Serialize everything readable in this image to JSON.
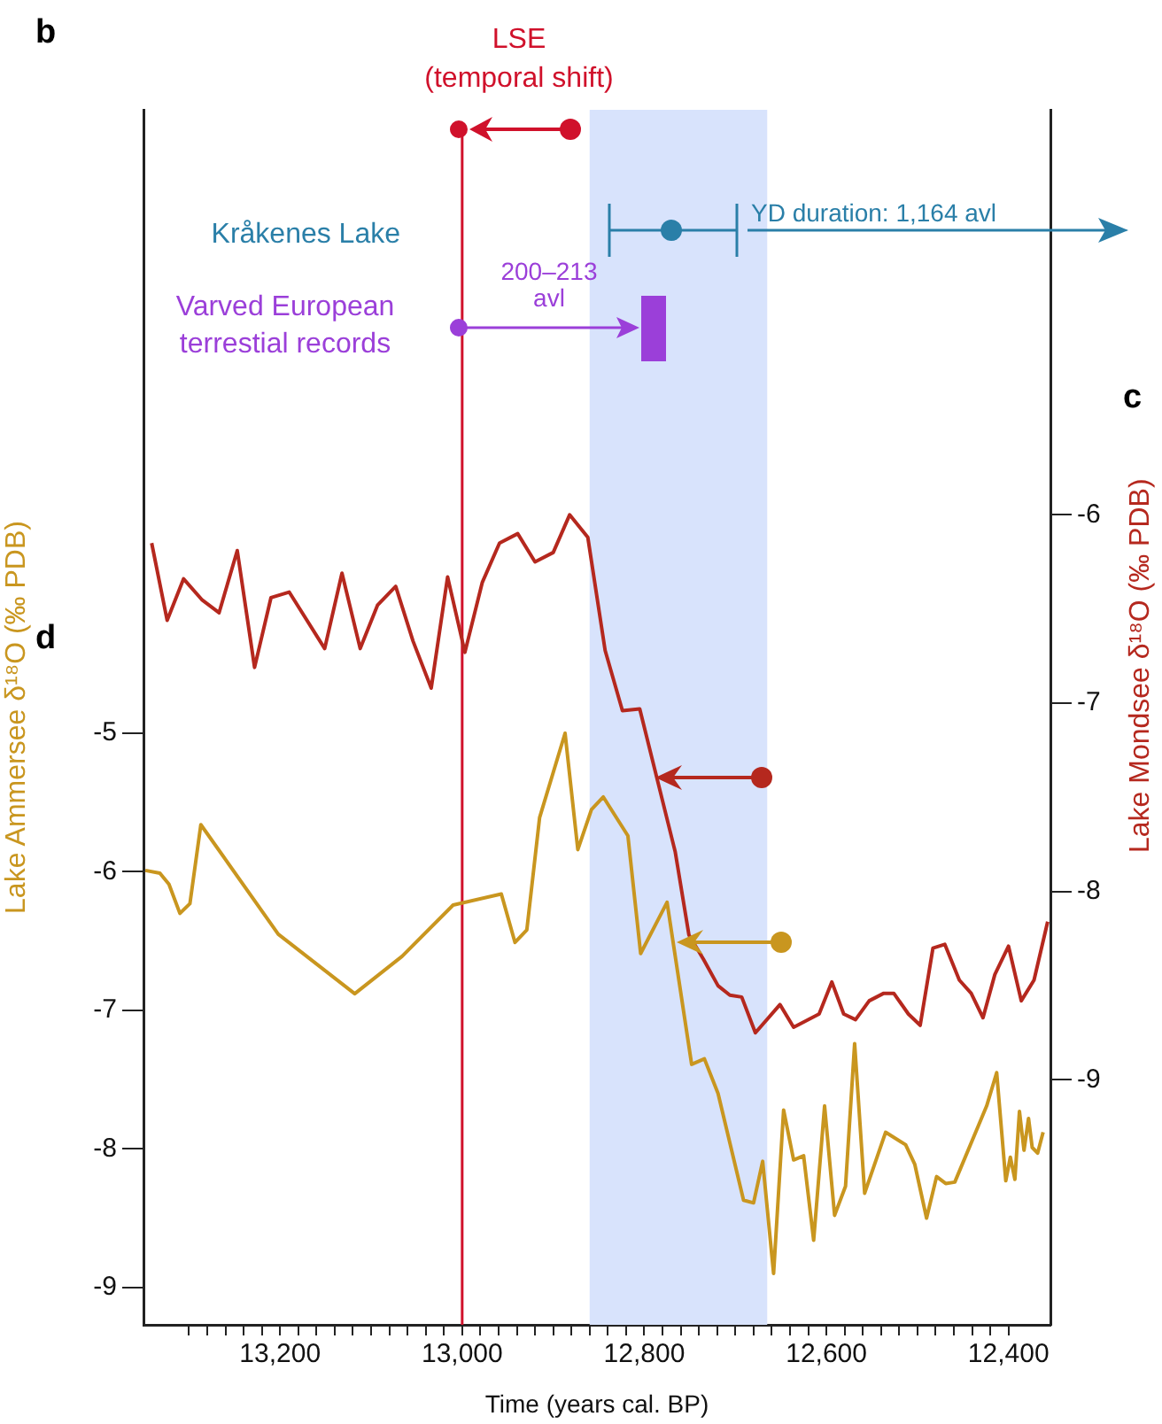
{
  "chart_data": {
    "type": "line",
    "xlabel": "Time (years cal. BP)",
    "ylabel": "Lake Ammersee δ¹⁸O (‰ PDB)",
    "y2label": "Lake Mondsee δ¹⁸O (‰ PDB)",
    "annotations": [
      "b",
      "c",
      "d",
      "LSE\n(temporal shift)",
      "Kråkenes Lake",
      "YD duration: 1,164 avl",
      "Varved European\nterrestial records",
      "200–213\navl"
    ],
    "xlim": [
      13350,
      12354
    ],
    "xticks": [
      {
        "value": 13300,
        "label": null
      },
      {
        "value": 13280,
        "label": null
      },
      {
        "value": 13260,
        "label": null
      },
      {
        "value": 13240,
        "label": null
      },
      {
        "value": 13220,
        "label": null
      },
      {
        "value": 13200,
        "label": "13,200"
      },
      {
        "value": 13180,
        "label": null
      },
      {
        "value": 13160,
        "label": null
      },
      {
        "value": 13140,
        "label": null
      },
      {
        "value": 13120,
        "label": null
      },
      {
        "value": 13100,
        "label": null
      },
      {
        "value": 13080,
        "label": null
      },
      {
        "value": 13060,
        "label": null
      },
      {
        "value": 13040,
        "label": null
      },
      {
        "value": 13020,
        "label": null
      },
      {
        "value": 13000,
        "label": "13,000"
      },
      {
        "value": 12980,
        "label": null
      },
      {
        "value": 12960,
        "label": null
      },
      {
        "value": 12940,
        "label": null
      },
      {
        "value": 12920,
        "label": null
      },
      {
        "value": 12900,
        "label": null
      },
      {
        "value": 12880,
        "label": null
      },
      {
        "value": 12860,
        "label": null
      },
      {
        "value": 12840,
        "label": null
      },
      {
        "value": 12820,
        "label": null
      },
      {
        "value": 12800,
        "label": "12,800"
      },
      {
        "value": 12780,
        "label": null
      },
      {
        "value": 12760,
        "label": null
      },
      {
        "value": 12740,
        "label": null
      },
      {
        "value": 12720,
        "label": null
      },
      {
        "value": 12700,
        "label": null
      },
      {
        "value": 12680,
        "label": null
      },
      {
        "value": 12660,
        "label": null
      },
      {
        "value": 12640,
        "label": null
      },
      {
        "value": 12620,
        "label": null
      },
      {
        "value": 12600,
        "label": "12,600"
      },
      {
        "value": 12580,
        "label": null
      },
      {
        "value": 12560,
        "label": null
      },
      {
        "value": 12540,
        "label": null
      },
      {
        "value": 12520,
        "label": null
      },
      {
        "value": 12500,
        "label": null
      },
      {
        "value": 12480,
        "label": null
      },
      {
        "value": 12460,
        "label": null
      },
      {
        "value": 12440,
        "label": null
      },
      {
        "value": 12420,
        "label": null
      },
      {
        "value": 12400,
        "label": "12,400"
      }
    ],
    "ylim": [
      -9.27,
      -0.5
    ],
    "yticks": [
      -9,
      -8,
      -7,
      -6,
      -5
    ],
    "y2lim": [
      -10.3,
      -3.85
    ],
    "y2ticks": [
      -9,
      -8,
      -7,
      -6
    ],
    "grid": false,
    "legend": false,
    "marker": "none",
    "line_style": "solid",
    "ref_lines": [
      {
        "axis": "x",
        "value": 13000,
        "color": "#d0112b"
      }
    ],
    "bands": [
      {
        "axis": "x",
        "from": 12860,
        "to": 12665,
        "color": "#d8e3fc"
      }
    ],
    "series": [
      {
        "color": "#b5281e",
        "axis": "y2",
        "x": [
          13341,
          13324,
          13306,
          13286,
          13267,
          13247,
          13228,
          13210,
          13190,
          13151,
          13132,
          13112,
          13093,
          13073,
          13054,
          13034,
          13016,
          12997,
          12978,
          12959,
          12939,
          12920,
          12900,
          12882,
          12862,
          12843,
          12824,
          12805,
          12766,
          12751,
          12735,
          12719,
          12706,
          12693,
          12678,
          12651,
          12636,
          12608,
          12594,
          12581,
          12568,
          12553,
          12537,
          12526,
          12510,
          12497,
          12483,
          12470,
          12454,
          12441,
          12428,
          12415,
          12400,
          12386,
          12372,
          12357
        ],
        "values": [
          -6.15,
          -6.56,
          -6.34,
          -6.45,
          -6.52,
          -6.19,
          -6.81,
          -6.44,
          -6.41,
          -6.71,
          -6.31,
          -6.71,
          -6.48,
          -6.38,
          -6.67,
          -6.92,
          -6.33,
          -6.73,
          -6.36,
          -6.15,
          -6.1,
          -6.25,
          -6.2,
          -6.0,
          -6.12,
          -6.72,
          -7.04,
          -7.03,
          -7.79,
          -8.23,
          -8.36,
          -8.5,
          -8.55,
          -8.56,
          -8.75,
          -8.6,
          -8.72,
          -8.65,
          -8.48,
          -8.65,
          -8.68,
          -8.58,
          -8.54,
          -8.54,
          -8.65,
          -8.71,
          -8.3,
          -8.28,
          -8.47,
          -8.54,
          -8.67,
          -8.44,
          -8.29,
          -8.58,
          -8.47,
          -8.16
        ]
      },
      {
        "color": "#c9961f",
        "axis": "y",
        "x": [
          13348,
          13332,
          13322,
          13310,
          13299,
          13287,
          13202,
          13118,
          13066,
          13010,
          12957,
          12942,
          12929,
          12915,
          12887,
          12873,
          12858,
          12845,
          12818,
          12804,
          12775,
          12748,
          12734,
          12719,
          12691,
          12680,
          12670,
          12658,
          12647,
          12636,
          12625,
          12614,
          12602,
          12591,
          12579,
          12569,
          12558,
          12535,
          12513,
          12503,
          12490,
          12479,
          12469,
          12459,
          12424,
          12413,
          12403,
          12398,
          12393,
          12388,
          12383,
          12378,
          12374,
          12368,
          12362
        ],
        "values": [
          -5.99,
          -6.01,
          -6.09,
          -6.3,
          -6.23,
          -5.66,
          -6.45,
          -6.88,
          -6.61,
          -6.24,
          -6.16,
          -6.51,
          -6.42,
          -5.61,
          -5.0,
          -5.84,
          -5.55,
          -5.46,
          -5.74,
          -6.59,
          -6.22,
          -7.39,
          -7.35,
          -7.6,
          -8.37,
          -8.39,
          -8.09,
          -8.9,
          -7.72,
          -8.08,
          -8.05,
          -8.66,
          -7.69,
          -8.48,
          -8.27,
          -7.24,
          -8.32,
          -7.88,
          -7.97,
          -8.11,
          -8.5,
          -8.2,
          -8.25,
          -8.24,
          -7.69,
          -7.45,
          -8.23,
          -8.06,
          -8.22,
          -7.73,
          -8.01,
          -7.78,
          -7.99,
          -8.03,
          -7.88
        ]
      }
    ]
  }
}
